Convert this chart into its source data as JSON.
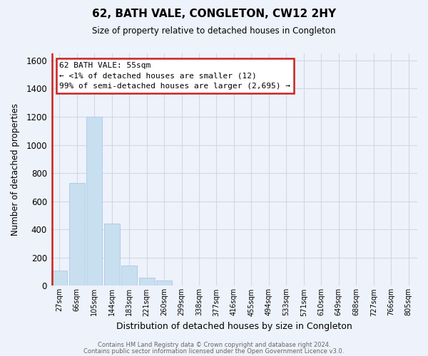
{
  "title": "62, BATH VALE, CONGLETON, CW12 2HY",
  "subtitle": "Size of property relative to detached houses in Congleton",
  "xlabel": "Distribution of detached houses by size in Congleton",
  "ylabel": "Number of detached properties",
  "bar_color": "#c8dff0",
  "bar_edge_color": "#a8c8e8",
  "bin_labels": [
    "27sqm",
    "66sqm",
    "105sqm",
    "144sqm",
    "183sqm",
    "221sqm",
    "260sqm",
    "299sqm",
    "338sqm",
    "377sqm",
    "416sqm",
    "455sqm",
    "494sqm",
    "533sqm",
    "571sqm",
    "610sqm",
    "649sqm",
    "688sqm",
    "727sqm",
    "766sqm",
    "805sqm"
  ],
  "bar_heights": [
    110,
    730,
    1200,
    440,
    145,
    60,
    35,
    0,
    0,
    0,
    0,
    0,
    0,
    0,
    0,
    0,
    0,
    0,
    0,
    0,
    0
  ],
  "ylim": [
    0,
    1650
  ],
  "yticks": [
    0,
    200,
    400,
    600,
    800,
    1000,
    1200,
    1400,
    1600
  ],
  "marker_color": "#cc2222",
  "annotation_title": "62 BATH VALE: 55sqm",
  "annotation_line1": "← <1% of detached houses are smaller (12)",
  "annotation_line2": "99% of semi-detached houses are larger (2,695) →",
  "annotation_box_color": "#ffffff",
  "annotation_box_edge": "#cc2222",
  "footer1": "Contains HM Land Registry data © Crown copyright and database right 2024.",
  "footer2": "Contains public sector information licensed under the Open Government Licence v3.0.",
  "background_color": "#eef2fa",
  "grid_color": "#d0d8e8"
}
